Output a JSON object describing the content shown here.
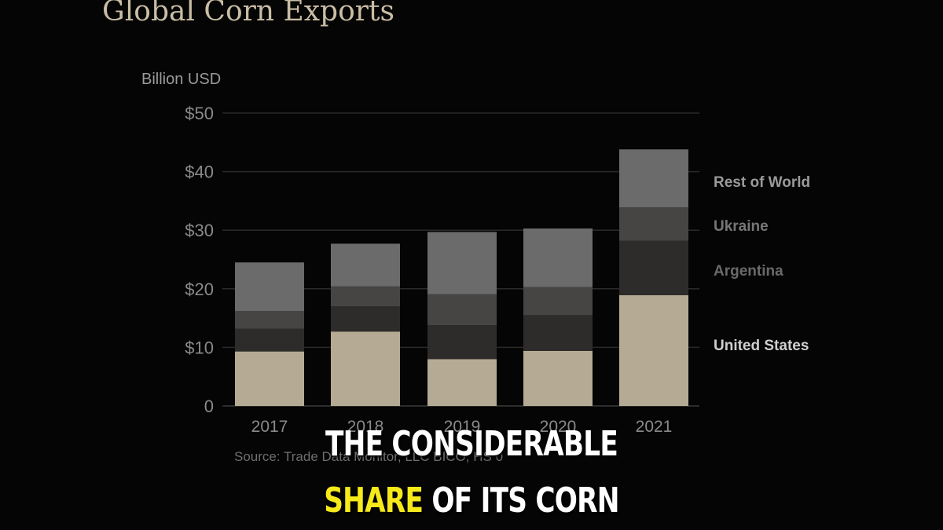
{
  "chart_data": {
    "type": "bar",
    "stacked": true,
    "title": "Global Corn Exports",
    "ylabel": "Billion USD",
    "ylim": [
      0,
      50
    ],
    "yticks": [
      0,
      10,
      20,
      30,
      40,
      50
    ],
    "ytick_labels": [
      "0",
      "$10",
      "$20",
      "$30",
      "$40",
      "$50"
    ],
    "categories": [
      "2017",
      "2018",
      "2019",
      "2020",
      "2021"
    ],
    "series": [
      {
        "name": "United States",
        "values": [
          9.3,
          12.7,
          8.0,
          9.4,
          18.9
        ],
        "color": "#b5ab95"
      },
      {
        "name": "Argentina",
        "values": [
          3.9,
          4.3,
          5.8,
          6.1,
          9.3
        ],
        "color": "#2e2c2b"
      },
      {
        "name": "Ukraine",
        "values": [
          3.0,
          3.4,
          5.3,
          4.8,
          5.7
        ],
        "color": "#464544"
      },
      {
        "name": "Rest of World",
        "values": [
          8.3,
          7.3,
          10.6,
          10.0,
          9.9
        ],
        "color": "#6b6b6b"
      }
    ],
    "legend_placement": "right",
    "legend_colors": [
      "#cfcfcf",
      "#6a6a6a",
      "#777777",
      "#9a9a9a"
    ],
    "grid": true,
    "source": "Source: Trade Data Monitor, LLC  BICO, HS 0"
  },
  "caption": {
    "line1": "THE CONSIDERABLE",
    "line2_highlight": "SHARE",
    "line2_rest": "OF ITS CORN",
    "highlight_color": "#f6ea1a"
  }
}
